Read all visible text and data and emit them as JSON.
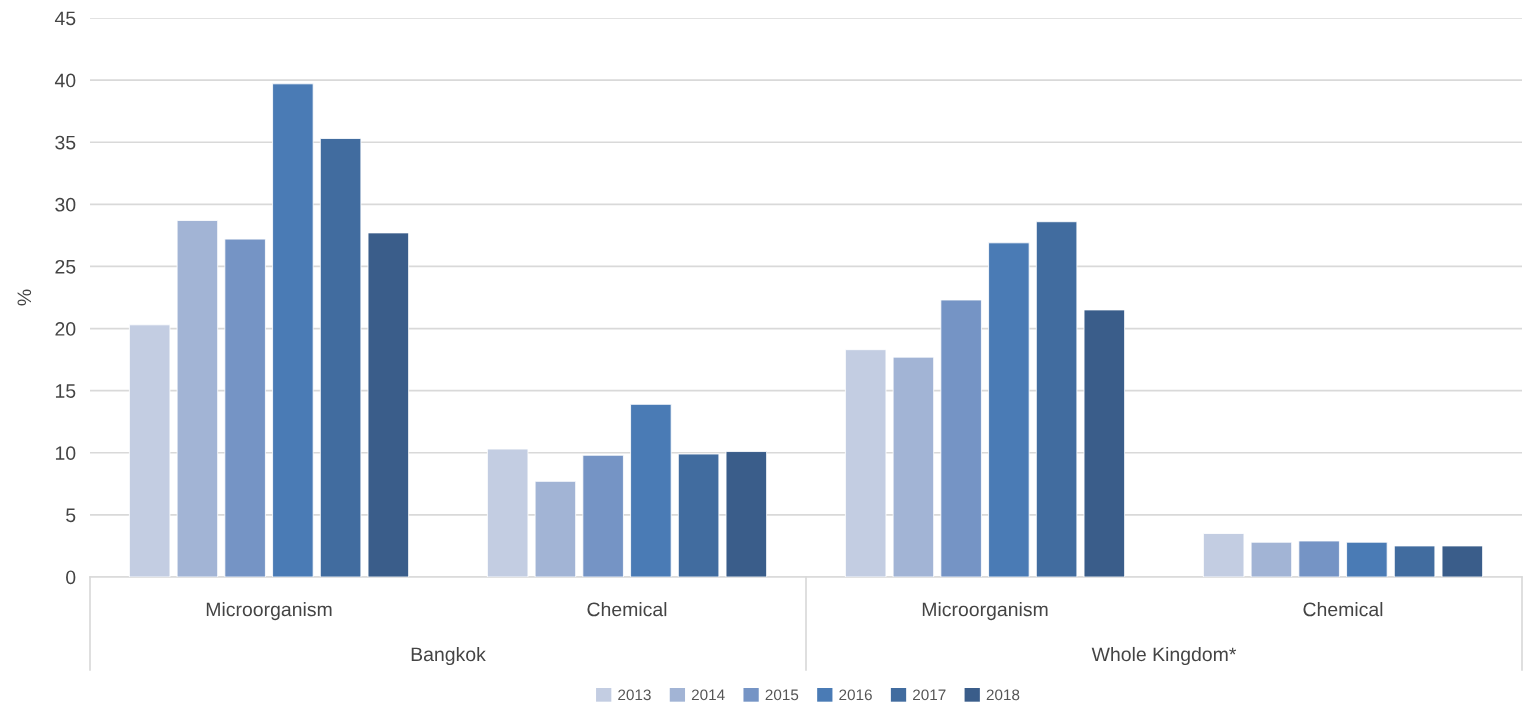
{
  "chart_data": {
    "type": "bar",
    "ylabel": "%",
    "categories": [
      "Microorganism",
      "Chemical",
      "Microorganism",
      "Chemical"
    ],
    "series": [
      {
        "name": "2013",
        "color": "#c3cde2",
        "values": [
          20.3,
          10.3,
          18.3,
          3.5
        ]
      },
      {
        "name": "2014",
        "color": "#a2b4d5",
        "values": [
          28.7,
          7.7,
          17.7,
          2.8
        ]
      },
      {
        "name": "2015",
        "color": "#7594c5",
        "values": [
          27.2,
          9.8,
          22.3,
          2.9
        ]
      },
      {
        "name": "2016",
        "color": "#4a7bb5",
        "values": [
          39.7,
          13.9,
          26.9,
          2.8
        ]
      },
      {
        "name": "2017",
        "color": "#416c9f",
        "values": [
          35.3,
          9.9,
          28.6,
          2.5
        ]
      },
      {
        "name": "2018",
        "color": "#3a5d8a",
        "values": [
          27.7,
          10.1,
          21.5,
          2.5
        ]
      }
    ],
    "annotations": [
      "Bangkok",
      "Whole Kingdom*"
    ],
    "ylim": [
      0,
      45
    ],
    "yticks": [
      0,
      5,
      10,
      15,
      20,
      25,
      30,
      35,
      40,
      45
    ],
    "grid": "y",
    "legend": "bottom"
  }
}
